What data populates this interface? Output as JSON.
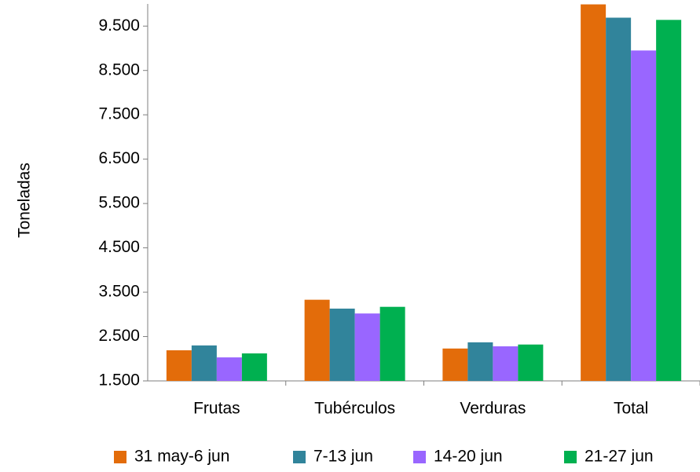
{
  "chart_data": {
    "type": "bar",
    "y_label": "Toneladas",
    "categories": [
      "Frutas",
      "Tubérculos",
      "Verduras",
      "Total"
    ],
    "series": [
      {
        "name": "31 may-6 jun",
        "color": "#e36c0a",
        "values": [
          2190,
          3330,
          2230,
          9990
        ]
      },
      {
        "name": "7-13 jun",
        "color": "#31849b",
        "values": [
          2300,
          3130,
          2370,
          9690
        ]
      },
      {
        "name": "14-20 jun",
        "color": "#9966ff",
        "values": [
          2030,
          3020,
          2280,
          8950
        ]
      },
      {
        "name": "21-27 jun",
        "color": "#00b050",
        "values": [
          2120,
          3170,
          2320,
          9640
        ]
      }
    ],
    "ylim": [
      1500,
      10000
    ],
    "yticks": [
      {
        "value": 1500,
        "label": "1.500"
      },
      {
        "value": 2500,
        "label": "2.500"
      },
      {
        "value": 3500,
        "label": "3.500"
      },
      {
        "value": 4500,
        "label": "4.500"
      },
      {
        "value": 5500,
        "label": "5.500"
      },
      {
        "value": 6500,
        "label": "6.500"
      },
      {
        "value": 7500,
        "label": "7.500"
      },
      {
        "value": 8500,
        "label": "8.500"
      },
      {
        "value": 9500,
        "label": "9.500"
      }
    ],
    "legend": "bottom"
  }
}
